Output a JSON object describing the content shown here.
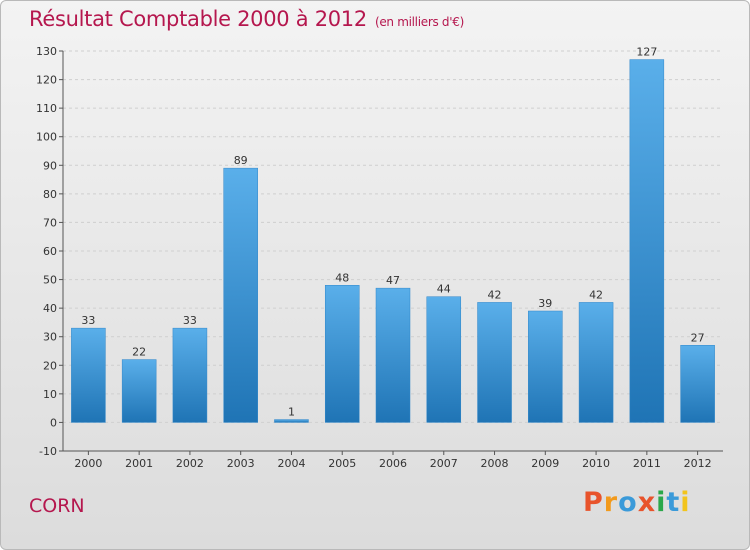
{
  "header": {
    "title": "Résultat Comptable 2000 à 2012",
    "subtitle": "(en milliers d'€)"
  },
  "footer": {
    "place": "CORN",
    "logo_text": "Proxiti"
  },
  "colors": {
    "title": "#b5174e",
    "bar_top": "#5aafea",
    "bar_bottom": "#1f74b5",
    "logo_letters": [
      "#e8532b",
      "#f29a1c",
      "#3a9ad9",
      "#e8532b",
      "#2ba84a",
      "#3a9ad9",
      "#f2c41c"
    ]
  },
  "chart_data": {
    "type": "bar",
    "title": "Résultat Comptable 2000 à 2012",
    "subtitle": "(en milliers d'€)",
    "categories": [
      "2000",
      "2001",
      "2002",
      "2003",
      "2004",
      "2005",
      "2006",
      "2007",
      "2008",
      "2009",
      "2010",
      "2011",
      "2012"
    ],
    "values": [
      33,
      22,
      33,
      89,
      1,
      48,
      47,
      44,
      42,
      39,
      42,
      127,
      27
    ],
    "ylim": [
      -10,
      130
    ],
    "yticks": [
      -10,
      0,
      10,
      20,
      30,
      40,
      50,
      60,
      70,
      80,
      90,
      100,
      110,
      120,
      130
    ],
    "grid": true,
    "data_labels": true,
    "legend": "none",
    "xlabel": "",
    "ylabel": ""
  }
}
